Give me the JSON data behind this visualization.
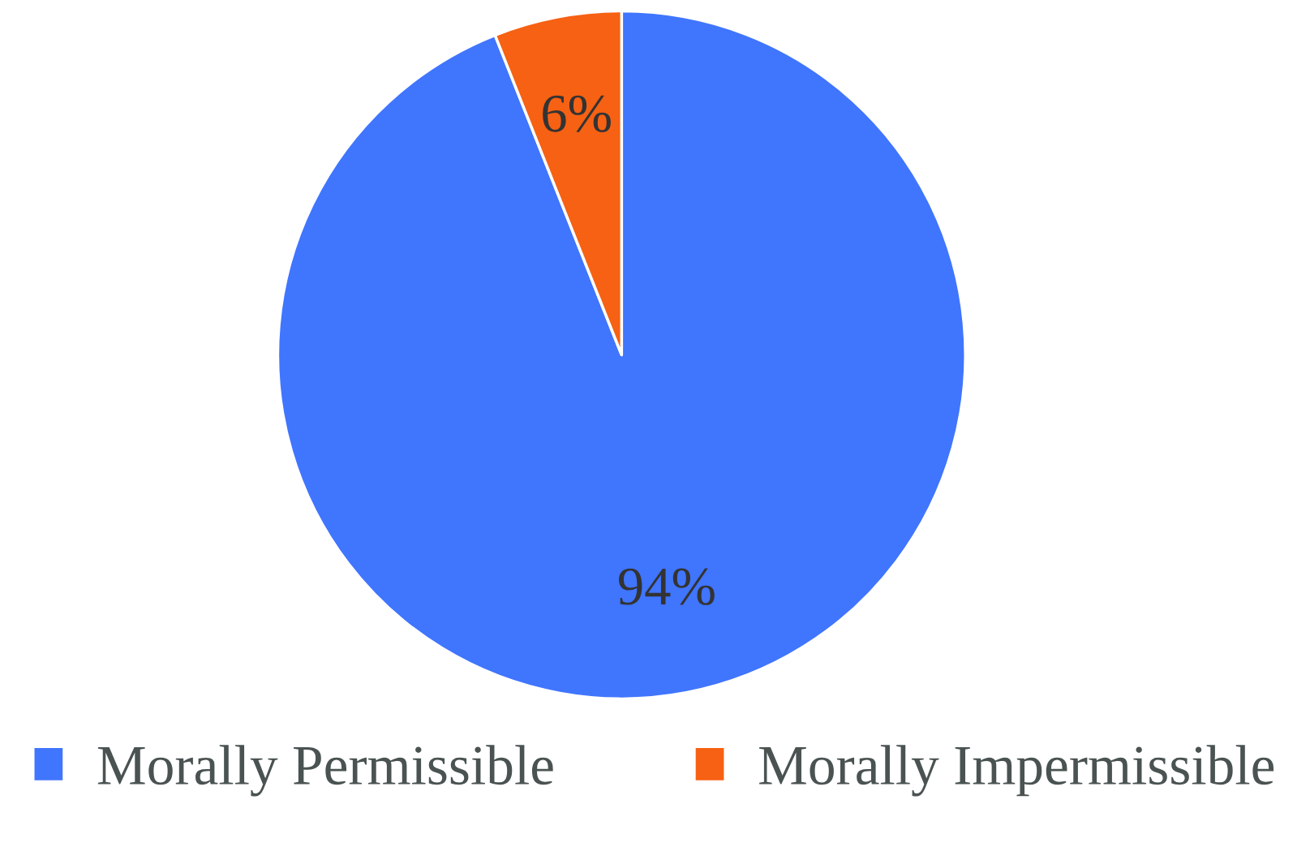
{
  "chart_data": {
    "type": "pie",
    "categories": [
      "Morally Permissible",
      "Morally Impermissible"
    ],
    "values": [
      94,
      6
    ],
    "colors": [
      "#4075fe",
      "#f66113"
    ],
    "value_labels": [
      "94%",
      "6%"
    ],
    "legend": "bottom"
  }
}
